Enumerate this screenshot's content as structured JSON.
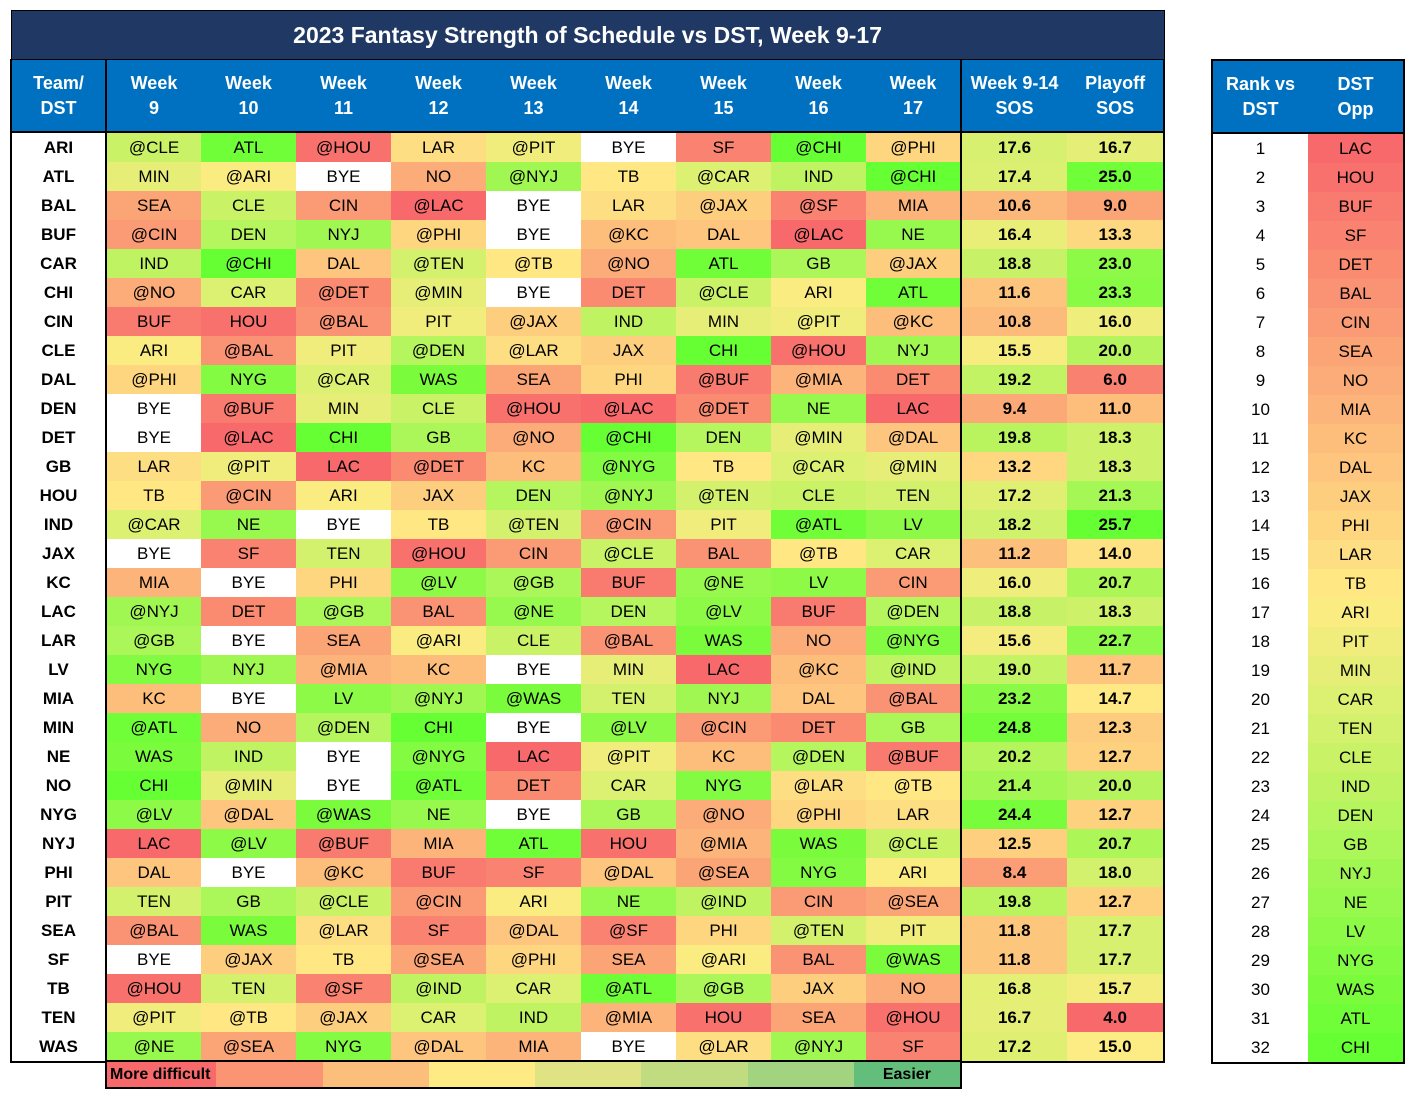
{
  "chart_data": {
    "type": "table",
    "title": "2023 Fantasy Strength of Schedule vs DST, Week 9-17",
    "columns": [
      {
        "line1": "Team/",
        "line2": "DST"
      },
      {
        "line1": "Week",
        "line2": "9"
      },
      {
        "line1": "Week",
        "line2": "10"
      },
      {
        "line1": "Week",
        "line2": "11"
      },
      {
        "line1": "Week",
        "line2": "12"
      },
      {
        "line1": "Week",
        "line2": "13"
      },
      {
        "line1": "Week",
        "line2": "14"
      },
      {
        "line1": "Week",
        "line2": "15"
      },
      {
        "line1": "Week",
        "line2": "16"
      },
      {
        "line1": "Week",
        "line2": "17"
      },
      {
        "line1": "Week 9-14",
        "line2": "SOS"
      },
      {
        "line1": "Playoff",
        "line2": "SOS"
      }
    ],
    "rows": [
      {
        "team": "ARI",
        "weeks": [
          "@CLE",
          "ATL",
          "@HOU",
          "LAR",
          "@PIT",
          "BYE",
          "SF",
          "@CHI",
          "@PHI"
        ],
        "sos": 17.6,
        "playoff": 16.7
      },
      {
        "team": "ATL",
        "weeks": [
          "MIN",
          "@ARI",
          "BYE",
          "NO",
          "@NYJ",
          "TB",
          "@CAR",
          "IND",
          "@CHI"
        ],
        "sos": 17.4,
        "playoff": 25.0
      },
      {
        "team": "BAL",
        "weeks": [
          "SEA",
          "CLE",
          "CIN",
          "@LAC",
          "BYE",
          "LAR",
          "@JAX",
          "@SF",
          "MIA"
        ],
        "sos": 10.6,
        "playoff": 9.0
      },
      {
        "team": "BUF",
        "weeks": [
          "@CIN",
          "DEN",
          "NYJ",
          "@PHI",
          "BYE",
          "@KC",
          "DAL",
          "@LAC",
          "NE"
        ],
        "sos": 16.4,
        "playoff": 13.3
      },
      {
        "team": "CAR",
        "weeks": [
          "IND",
          "@CHI",
          "DAL",
          "@TEN",
          "@TB",
          "@NO",
          "ATL",
          "GB",
          "@JAX"
        ],
        "sos": 18.8,
        "playoff": 23.0
      },
      {
        "team": "CHI",
        "weeks": [
          "@NO",
          "CAR",
          "@DET",
          "@MIN",
          "BYE",
          "DET",
          "@CLE",
          "ARI",
          "ATL"
        ],
        "sos": 11.6,
        "playoff": 23.3
      },
      {
        "team": "CIN",
        "weeks": [
          "BUF",
          "HOU",
          "@BAL",
          "PIT",
          "@JAX",
          "IND",
          "MIN",
          "@PIT",
          "@KC"
        ],
        "sos": 10.8,
        "playoff": 16.0
      },
      {
        "team": "CLE",
        "weeks": [
          "ARI",
          "@BAL",
          "PIT",
          "@DEN",
          "@LAR",
          "JAX",
          "CHI",
          "@HOU",
          "NYJ"
        ],
        "sos": 15.5,
        "playoff": 20.0
      },
      {
        "team": "DAL",
        "weeks": [
          "@PHI",
          "NYG",
          "@CAR",
          "WAS",
          "SEA",
          "PHI",
          "@BUF",
          "@MIA",
          "DET"
        ],
        "sos": 19.2,
        "playoff": 6.0
      },
      {
        "team": "DEN",
        "weeks": [
          "BYE",
          "@BUF",
          "MIN",
          "CLE",
          "@HOU",
          "@LAC",
          "@DET",
          "NE",
          "LAC"
        ],
        "sos": 9.4,
        "playoff": 11.0
      },
      {
        "team": "DET",
        "weeks": [
          "BYE",
          "@LAC",
          "CHI",
          "GB",
          "@NO",
          "@CHI",
          "DEN",
          "@MIN",
          "@DAL"
        ],
        "sos": 19.8,
        "playoff": 18.3
      },
      {
        "team": "GB",
        "weeks": [
          "LAR",
          "@PIT",
          "LAC",
          "@DET",
          "KC",
          "@NYG",
          "TB",
          "@CAR",
          "@MIN"
        ],
        "sos": 13.2,
        "playoff": 18.3
      },
      {
        "team": "HOU",
        "weeks": [
          "TB",
          "@CIN",
          "ARI",
          "JAX",
          "DEN",
          "@NYJ",
          "@TEN",
          "CLE",
          "TEN"
        ],
        "sos": 17.2,
        "playoff": 21.3
      },
      {
        "team": "IND",
        "weeks": [
          "@CAR",
          "NE",
          "BYE",
          "TB",
          "@TEN",
          "@CIN",
          "PIT",
          "@ATL",
          "LV"
        ],
        "sos": 18.2,
        "playoff": 25.7
      },
      {
        "team": "JAX",
        "weeks": [
          "BYE",
          "SF",
          "TEN",
          "@HOU",
          "CIN",
          "@CLE",
          "BAL",
          "@TB",
          "CAR"
        ],
        "sos": 11.2,
        "playoff": 14.0
      },
      {
        "team": "KC",
        "weeks": [
          "MIA",
          "BYE",
          "PHI",
          "@LV",
          "@GB",
          "BUF",
          "@NE",
          "LV",
          "CIN"
        ],
        "sos": 16.0,
        "playoff": 20.7
      },
      {
        "team": "LAC",
        "weeks": [
          "@NYJ",
          "DET",
          "@GB",
          "BAL",
          "@NE",
          "DEN",
          "@LV",
          "BUF",
          "@DEN"
        ],
        "sos": 18.8,
        "playoff": 18.3
      },
      {
        "team": "LAR",
        "weeks": [
          "@GB",
          "BYE",
          "SEA",
          "@ARI",
          "CLE",
          "@BAL",
          "WAS",
          "NO",
          "@NYG"
        ],
        "sos": 15.6,
        "playoff": 22.7
      },
      {
        "team": "LV",
        "weeks": [
          "NYG",
          "NYJ",
          "@MIA",
          "KC",
          "BYE",
          "MIN",
          "LAC",
          "@KC",
          "@IND"
        ],
        "sos": 19.0,
        "playoff": 11.7
      },
      {
        "team": "MIA",
        "weeks": [
          "KC",
          "BYE",
          "LV",
          "@NYJ",
          "@WAS",
          "TEN",
          "NYJ",
          "DAL",
          "@BAL"
        ],
        "sos": 23.2,
        "playoff": 14.7
      },
      {
        "team": "MIN",
        "weeks": [
          "@ATL",
          "NO",
          "@DEN",
          "CHI",
          "BYE",
          "@LV",
          "@CIN",
          "DET",
          "GB"
        ],
        "sos": 24.8,
        "playoff": 12.3
      },
      {
        "team": "NE",
        "weeks": [
          "WAS",
          "IND",
          "BYE",
          "@NYG",
          "LAC",
          "@PIT",
          "KC",
          "@DEN",
          "@BUF"
        ],
        "sos": 20.2,
        "playoff": 12.7
      },
      {
        "team": "NO",
        "weeks": [
          "CHI",
          "@MIN",
          "BYE",
          "@ATL",
          "DET",
          "CAR",
          "NYG",
          "@LAR",
          "@TB"
        ],
        "sos": 21.4,
        "playoff": 20.0
      },
      {
        "team": "NYG",
        "weeks": [
          "@LV",
          "@DAL",
          "@WAS",
          "NE",
          "BYE",
          "GB",
          "@NO",
          "@PHI",
          "LAR"
        ],
        "sos": 24.4,
        "playoff": 12.7
      },
      {
        "team": "NYJ",
        "weeks": [
          "LAC",
          "@LV",
          "@BUF",
          "MIA",
          "ATL",
          "HOU",
          "@MIA",
          "WAS",
          "@CLE"
        ],
        "sos": 12.5,
        "playoff": 20.7
      },
      {
        "team": "PHI",
        "weeks": [
          "DAL",
          "BYE",
          "@KC",
          "BUF",
          "SF",
          "@DAL",
          "@SEA",
          "NYG",
          "ARI"
        ],
        "sos": 8.4,
        "playoff": 18.0
      },
      {
        "team": "PIT",
        "weeks": [
          "TEN",
          "GB",
          "@CLE",
          "@CIN",
          "ARI",
          "NE",
          "@IND",
          "CIN",
          "@SEA"
        ],
        "sos": 19.8,
        "playoff": 12.7
      },
      {
        "team": "SEA",
        "weeks": [
          "@BAL",
          "WAS",
          "@LAR",
          "SF",
          "@DAL",
          "@SF",
          "PHI",
          "@TEN",
          "PIT"
        ],
        "sos": 11.8,
        "playoff": 17.7
      },
      {
        "team": "SF",
        "weeks": [
          "BYE",
          "@JAX",
          "TB",
          "@SEA",
          "@PHI",
          "SEA",
          "@ARI",
          "BAL",
          "@WAS"
        ],
        "sos": 11.8,
        "playoff": 17.7
      },
      {
        "team": "TB",
        "weeks": [
          "@HOU",
          "TEN",
          "@SF",
          "@IND",
          "CAR",
          "@ATL",
          "@GB",
          "JAX",
          "NO"
        ],
        "sos": 16.8,
        "playoff": 15.7
      },
      {
        "team": "TEN",
        "weeks": [
          "@PIT",
          "@TB",
          "@JAX",
          "CAR",
          "IND",
          "@MIA",
          "HOU",
          "SEA",
          "@HOU"
        ],
        "sos": 16.7,
        "playoff": 4.0
      },
      {
        "team": "WAS",
        "weeks": [
          "@NE",
          "@SEA",
          "NYG",
          "@DAL",
          "MIA",
          "BYE",
          "@LAR",
          "@NYJ",
          "SF"
        ],
        "sos": 17.2,
        "playoff": 15.0
      }
    ],
    "rank_table": {
      "headers": [
        {
          "line1": "Rank vs",
          "line2": "DST"
        },
        {
          "line1": "DST",
          "line2": "Opp"
        }
      ],
      "ranks": [
        {
          "rank": 1,
          "opp": "LAC"
        },
        {
          "rank": 2,
          "opp": "HOU"
        },
        {
          "rank": 3,
          "opp": "BUF"
        },
        {
          "rank": 4,
          "opp": "SF"
        },
        {
          "rank": 5,
          "opp": "DET"
        },
        {
          "rank": 6,
          "opp": "BAL"
        },
        {
          "rank": 7,
          "opp": "CIN"
        },
        {
          "rank": 8,
          "opp": "SEA"
        },
        {
          "rank": 9,
          "opp": "NO"
        },
        {
          "rank": 10,
          "opp": "MIA"
        },
        {
          "rank": 11,
          "opp": "KC"
        },
        {
          "rank": 12,
          "opp": "DAL"
        },
        {
          "rank": 13,
          "opp": "JAX"
        },
        {
          "rank": 14,
          "opp": "PHI"
        },
        {
          "rank": 15,
          "opp": "LAR"
        },
        {
          "rank": 16,
          "opp": "TB"
        },
        {
          "rank": 17,
          "opp": "ARI"
        },
        {
          "rank": 18,
          "opp": "PIT"
        },
        {
          "rank": 19,
          "opp": "MIN"
        },
        {
          "rank": 20,
          "opp": "CAR"
        },
        {
          "rank": 21,
          "opp": "TEN"
        },
        {
          "rank": 22,
          "opp": "CLE"
        },
        {
          "rank": 23,
          "opp": "IND"
        },
        {
          "rank": 24,
          "opp": "DEN"
        },
        {
          "rank": 25,
          "opp": "GB"
        },
        {
          "rank": 26,
          "opp": "NYJ"
        },
        {
          "rank": 27,
          "opp": "NE"
        },
        {
          "rank": 28,
          "opp": "LV"
        },
        {
          "rank": 29,
          "opp": "NYG"
        },
        {
          "rank": 30,
          "opp": "WAS"
        },
        {
          "rank": 31,
          "opp": "ATL"
        },
        {
          "rank": 32,
          "opp": "CHI"
        }
      ]
    },
    "sos_range": [
      4.0,
      25.7
    ],
    "legend": {
      "left": "More difficult",
      "right": "Easier"
    },
    "colors": {
      "title_bg": "#1f3864",
      "header_bg": "#0070c0",
      "bye": "#ffffff",
      "scale": [
        "#f8696b",
        "#fa9473",
        "#fcbf7b",
        "#ffeb84",
        "#e0e383",
        "#c1db81",
        "#a2d380",
        "#63be7b"
      ],
      "ramp": [
        "#f8696b",
        "#ffeb84",
        "#66ff33"
      ]
    }
  }
}
